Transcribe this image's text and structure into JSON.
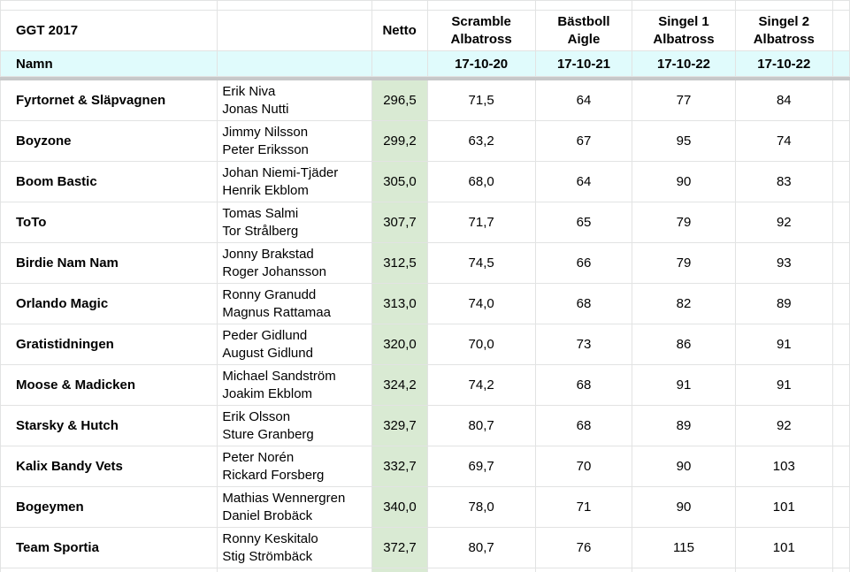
{
  "title": "GGT 2017",
  "column_labels": {
    "netto": "Netto",
    "namn": "Namn"
  },
  "rounds": [
    {
      "line1": "Scramble",
      "line2": "Albatross",
      "date": "17-10-20"
    },
    {
      "line1": "Bästboll",
      "line2": "Aigle",
      "date": "17-10-21"
    },
    {
      "line1": "Singel 1",
      "line2": "Albatross",
      "date": "17-10-22"
    },
    {
      "line1": "Singel 2",
      "line2": "Albatross",
      "date": "17-10-22"
    }
  ],
  "teams": [
    {
      "name": "Fyrtornet & Släpvagnen",
      "player1": "Erik Niva",
      "player2": "Jonas Nutti",
      "netto": "296,5",
      "scores": [
        "71,5",
        "64",
        "77",
        "84"
      ]
    },
    {
      "name": "Boyzone",
      "player1": "Jimmy Nilsson",
      "player2": "Peter Eriksson",
      "netto": "299,2",
      "scores": [
        "63,2",
        "67",
        "95",
        "74"
      ]
    },
    {
      "name": "Boom Bastic",
      "player1": "Johan Niemi-Tjäder",
      "player2": "Henrik Ekblom",
      "netto": "305,0",
      "scores": [
        "68,0",
        "64",
        "90",
        "83"
      ]
    },
    {
      "name": "ToTo",
      "player1": "Tomas Salmi",
      "player2": "Tor Strålberg",
      "netto": "307,7",
      "scores": [
        "71,7",
        "65",
        "79",
        "92"
      ]
    },
    {
      "name": "Birdie Nam Nam",
      "player1": "Jonny Brakstad",
      "player2": "Roger Johansson",
      "netto": "312,5",
      "scores": [
        "74,5",
        "66",
        "79",
        "93"
      ]
    },
    {
      "name": "Orlando Magic",
      "player1": "Ronny Granudd",
      "player2": "Magnus Rattamaa",
      "netto": "313,0",
      "scores": [
        "74,0",
        "68",
        "82",
        "89"
      ]
    },
    {
      "name": "Gratistidningen",
      "player1": "Peder Gidlund",
      "player2": "August Gidlund",
      "netto": "320,0",
      "scores": [
        "70,0",
        "73",
        "86",
        "91"
      ]
    },
    {
      "name": "Moose & Madicken",
      "player1": "Michael Sandström",
      "player2": "Joakim Ekblom",
      "netto": "324,2",
      "scores": [
        "74,2",
        "68",
        "91",
        "91"
      ]
    },
    {
      "name": "Starsky & Hutch",
      "player1": "Erik Olsson",
      "player2": "Sture Granberg",
      "netto": "329,7",
      "scores": [
        "80,7",
        "68",
        "89",
        "92"
      ]
    },
    {
      "name": "Kalix Bandy Vets",
      "player1": "Peter Norén",
      "player2": "Rickard Forsberg",
      "netto": "332,7",
      "scores": [
        "69,7",
        "70",
        "90",
        "103"
      ]
    },
    {
      "name": "Bogeymen",
      "player1": "Mathias Wennergren",
      "player2": "Daniel Brobäck",
      "netto": "340,0",
      "scores": [
        "78,0",
        "71",
        "90",
        "101"
      ]
    },
    {
      "name": "Team Sportia",
      "player1": "Ronny Keskitalo",
      "player2": "Stig Strömbäck",
      "netto": "372,7",
      "scores": [
        "80,7",
        "76",
        "115",
        "101"
      ]
    }
  ],
  "colors": {
    "netto_fill": "#d9ead3",
    "namn_row_fill": "#e0fbfc",
    "gridline": "#e2e3e3",
    "freeze_bar": "#c7c8c9"
  }
}
